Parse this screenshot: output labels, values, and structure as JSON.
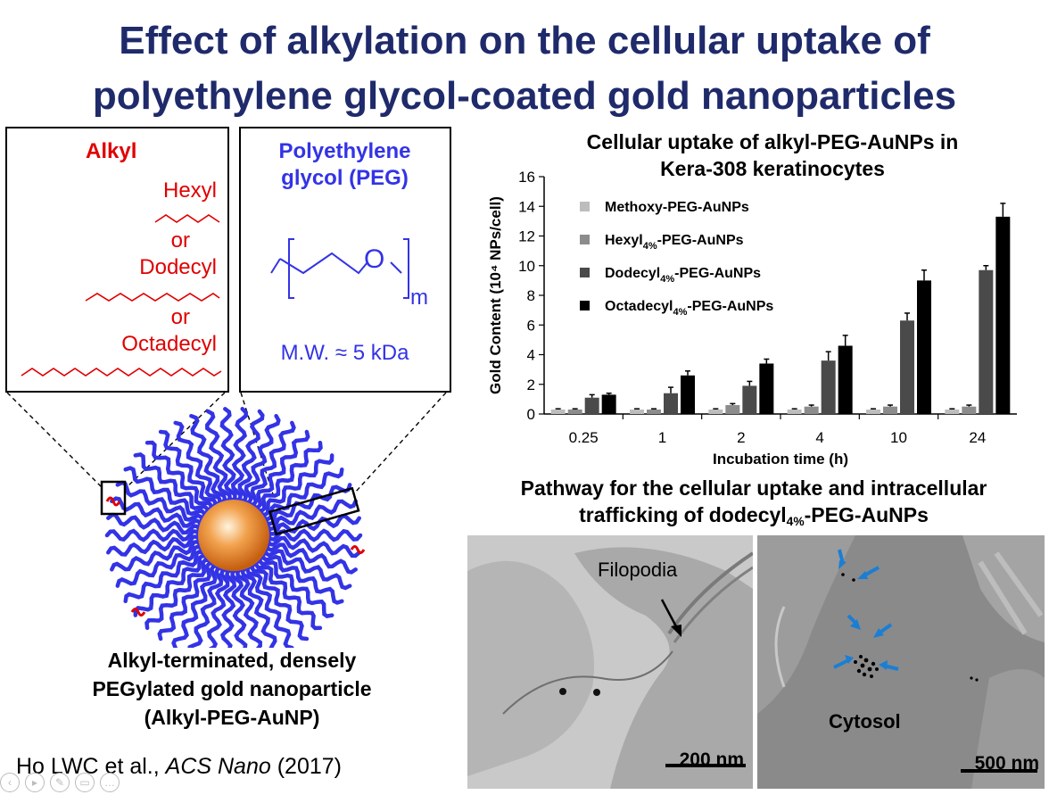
{
  "title": {
    "line1": "Effect of alkylation on the cellular uptake of",
    "line2": "polyethylene glycol-coated gold nanoparticles"
  },
  "alkyl_box": {
    "heading": "Alkyl",
    "items": [
      "Hexyl",
      "or",
      "Dodecyl",
      "or",
      "Octadecyl"
    ]
  },
  "peg_box": {
    "heading_line1": "Polyethylene",
    "heading_line2": "glycol (PEG)",
    "subscript": "m",
    "atom": "O",
    "mw": "M.W. ≈ 5 kDa"
  },
  "np_caption": {
    "line1": "Alkyl-terminated, densely",
    "line2": "PEGylated gold nanoparticle",
    "line3": "(Alkyl-PEG-AuNP)"
  },
  "citation": {
    "authors": "Ho LWC et al., ",
    "journal": "ACS Nano",
    "year": " (2017)"
  },
  "chart_title": {
    "line1": "Cellular uptake of alkyl-PEG-AuNPs in",
    "line2": "Kera-308 keratinocytes"
  },
  "chart_data": {
    "type": "bar",
    "categories": [
      "0.25",
      "1",
      "2",
      "4",
      "10",
      "24"
    ],
    "xlabel": "Incubation time (h)",
    "ylabel": "Gold Content (10⁴ NPs/cell)",
    "ylim": [
      0,
      16
    ],
    "yticks": [
      0,
      2,
      4,
      6,
      8,
      10,
      12,
      14,
      16
    ],
    "legend_position": "top-left",
    "series": [
      {
        "name": "Methoxy-PEG-AuNPs",
        "name_parts": [
          "Methoxy-PEG-AuNPs",
          "",
          ""
        ],
        "color": "#bdbdbd",
        "values": [
          0.3,
          0.3,
          0.3,
          0.3,
          0.3,
          0.3
        ],
        "errors": [
          0.05,
          0.05,
          0.05,
          0.05,
          0.05,
          0.05
        ]
      },
      {
        "name": "Hexyl4%-PEG-AuNPs",
        "name_parts": [
          "Hexyl",
          "4%",
          "-PEG-AuNPs"
        ],
        "color": "#8c8c8c",
        "values": [
          0.3,
          0.3,
          0.6,
          0.5,
          0.5,
          0.5
        ],
        "errors": [
          0.05,
          0.05,
          0.1,
          0.1,
          0.1,
          0.1
        ]
      },
      {
        "name": "Dodecyl4%-PEG-AuNPs",
        "name_parts": [
          "Dodecyl",
          "4%",
          "-PEG-AuNPs"
        ],
        "color": "#4a4a4a",
        "values": [
          1.1,
          1.4,
          1.9,
          3.6,
          6.3,
          9.7
        ],
        "errors": [
          0.2,
          0.4,
          0.3,
          0.6,
          0.5,
          0.3
        ]
      },
      {
        "name": "Octadecyl4%-PEG-AuNPs",
        "name_parts": [
          "Octadecyl",
          "4%",
          "-PEG-AuNPs"
        ],
        "color": "#000000",
        "values": [
          1.3,
          2.6,
          3.4,
          4.6,
          9.0,
          13.3
        ],
        "errors": [
          0.1,
          0.3,
          0.3,
          0.7,
          0.7,
          0.9
        ]
      }
    ]
  },
  "pathway_title": {
    "line1": "Pathway for the cellular uptake and intracellular",
    "line2_pre": "trafficking of dodecyl",
    "line2_sub": "4%",
    "line2_post": "-PEG-AuNPs"
  },
  "tem_left": {
    "label": "Filopodia",
    "scale": "200 nm"
  },
  "tem_right": {
    "label": "Cytosol",
    "scale": "500 nm"
  },
  "colors": {
    "title": "#1f2a6b",
    "alkyl": "#e00000",
    "peg": "#3333e6",
    "gold_core": "#e8903a"
  }
}
